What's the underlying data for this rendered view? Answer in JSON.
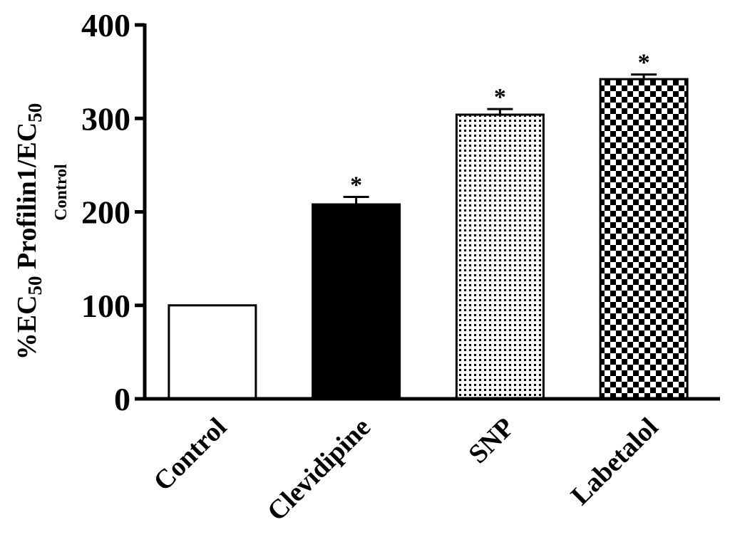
{
  "chart_data": {
    "type": "bar",
    "categories": [
      "Control",
      "Clevidipine",
      "SNP",
      "Labetalol"
    ],
    "values": [
      100,
      208,
      304,
      342
    ],
    "errors": [
      0,
      8,
      6,
      5
    ],
    "significance": [
      "",
      "*",
      "*",
      "*"
    ],
    "fills": [
      "white",
      "black",
      "dots",
      "checker"
    ],
    "ylim": [
      0,
      400
    ],
    "yticks": [
      0,
      100,
      200,
      300,
      400
    ],
    "ylabel": {
      "prefix": "%EC",
      "sub1": "50",
      "middle": " Profilin1/EC",
      "sub2": "50",
      "line2": "Control"
    },
    "xlabel": "",
    "title": "",
    "grid": false,
    "colors": {
      "bar_edge": "#000000",
      "bar_solid": "#000000",
      "axis": "#000000",
      "background": "#ffffff"
    }
  }
}
